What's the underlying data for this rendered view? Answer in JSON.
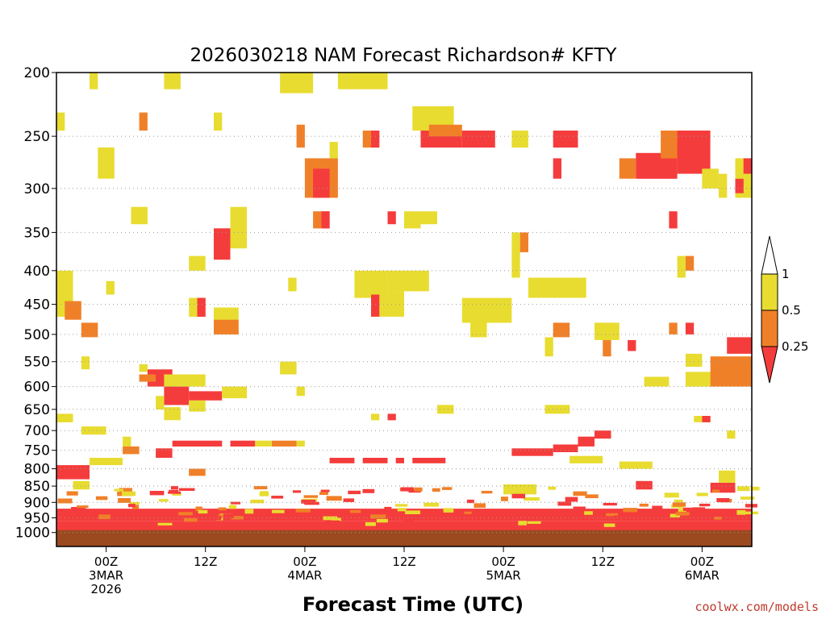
{
  "chart_data": {
    "type": "heatmap",
    "title": "2026030218 NAM Forecast Richardson# KFTY",
    "xlabel": "Forecast Time (UTC)",
    "ylabel": "",
    "credit": "coolwx.com/models",
    "y_axis": {
      "scale": "log-pressure",
      "range": [
        200,
        1050
      ],
      "ticks": [
        "200",
        "250",
        "300",
        "350",
        "400",
        "450",
        "500",
        "550",
        "600",
        "650",
        "700",
        "750",
        "800",
        "850",
        "900",
        "950",
        "1000"
      ]
    },
    "x_axis": {
      "range_hours": [
        0,
        84
      ],
      "ticks": [
        {
          "hour": 6,
          "label": "00Z",
          "date": "3MAR",
          "year": "2026"
        },
        {
          "hour": 18,
          "label": "12Z"
        },
        {
          "hour": 30,
          "label": "00Z",
          "date": "4MAR"
        },
        {
          "hour": 42,
          "label": "12Z"
        },
        {
          "hour": 54,
          "label": "00Z",
          "date": "5MAR"
        },
        {
          "hour": 66,
          "label": "12Z"
        },
        {
          "hour": 78,
          "label": "00Z",
          "date": "6MAR"
        }
      ]
    },
    "ground_level_hpa": 1000,
    "ground_color": "#9b4a20",
    "colorbar": {
      "labels": [
        "1",
        "0.5",
        "0.25"
      ],
      "bins": [
        {
          "range": ">1",
          "color": "#ffffff"
        },
        {
          "range": "0.5-1",
          "color": "#e8dc30"
        },
        {
          "range": "0.25-0.5",
          "color": "#f08028"
        },
        {
          "range": "<0.25",
          "color": "#f53c3c"
        }
      ]
    },
    "colors": {
      "y": "#e8dc30",
      "o": "#f08028",
      "r": "#f53c3c"
    },
    "regions": [
      {
        "h": [
          0,
          84
        ],
        "p": [
          960,
          1000
        ],
        "c": "r"
      },
      {
        "h": [
          0,
          84
        ],
        "p": [
          920,
          960
        ],
        "c": "r"
      },
      {
        "h": [
          0,
          4
        ],
        "p": [
          790,
          830
        ],
        "c": "r"
      },
      {
        "h": [
          2,
          4
        ],
        "p": [
          835,
          860
        ],
        "c": "y"
      },
      {
        "h": [
          4,
          8
        ],
        "p": [
          770,
          790
        ],
        "c": "y"
      },
      {
        "h": [
          8,
          10
        ],
        "p": [
          740,
          760
        ],
        "c": "o"
      },
      {
        "h": [
          8,
          9
        ],
        "p": [
          715,
          740
        ],
        "c": "y"
      },
      {
        "h": [
          14,
          20
        ],
        "p": [
          725,
          740
        ],
        "c": "r"
      },
      {
        "h": [
          21,
          24
        ],
        "p": [
          725,
          740
        ],
        "c": "r"
      },
      {
        "h": [
          26,
          29
        ],
        "p": [
          725,
          740
        ],
        "c": "o"
      },
      {
        "h": [
          24,
          26
        ],
        "p": [
          725,
          740
        ],
        "c": "y"
      },
      {
        "h": [
          29,
          30
        ],
        "p": [
          725,
          740
        ],
        "c": "y"
      },
      {
        "h": [
          16,
          18
        ],
        "p": [
          800,
          820
        ],
        "c": "o"
      },
      {
        "h": [
          12,
          14
        ],
        "p": [
          745,
          770
        ],
        "c": "r"
      },
      {
        "h": [
          33,
          36
        ],
        "p": [
          770,
          785
        ],
        "c": "r"
      },
      {
        "h": [
          37,
          40
        ],
        "p": [
          770,
          785
        ],
        "c": "r"
      },
      {
        "h": [
          43,
          47
        ],
        "p": [
          770,
          785
        ],
        "c": "r"
      },
      {
        "h": [
          41,
          42
        ],
        "p": [
          770,
          785
        ],
        "c": "r"
      },
      {
        "h": [
          55,
          60
        ],
        "p": [
          745,
          765
        ],
        "c": "r"
      },
      {
        "h": [
          60,
          63
        ],
        "p": [
          735,
          755
        ],
        "c": "r"
      },
      {
        "h": [
          63,
          65
        ],
        "p": [
          715,
          740
        ],
        "c": "r"
      },
      {
        "h": [
          65,
          67
        ],
        "p": [
          700,
          720
        ],
        "c": "r"
      },
      {
        "h": [
          62,
          66
        ],
        "p": [
          765,
          785
        ],
        "c": "y"
      },
      {
        "h": [
          68,
          72
        ],
        "p": [
          780,
          800
        ],
        "c": "y"
      },
      {
        "h": [
          70,
          72
        ],
        "p": [
          835,
          860
        ],
        "c": "r"
      },
      {
        "h": [
          79,
          82
        ],
        "p": [
          840,
          870
        ],
        "c": "r"
      },
      {
        "h": [
          80,
          82
        ],
        "p": [
          805,
          840
        ],
        "c": "y"
      },
      {
        "h": [
          54,
          58
        ],
        "p": [
          845,
          875
        ],
        "c": "y"
      },
      {
        "h": [
          0,
          2
        ],
        "p": [
          660,
          680
        ],
        "c": "y"
      },
      {
        "h": [
          3,
          6
        ],
        "p": [
          690,
          710
        ],
        "c": "y"
      },
      {
        "h": [
          11,
          14
        ],
        "p": [
          565,
          600
        ],
        "c": "r"
      },
      {
        "h": [
          13,
          16
        ],
        "p": [
          600,
          640
        ],
        "c": "r"
      },
      {
        "h": [
          16,
          20
        ],
        "p": [
          610,
          630
        ],
        "c": "r"
      },
      {
        "h": [
          20,
          23
        ],
        "p": [
          600,
          625
        ],
        "c": "y"
      },
      {
        "h": [
          13,
          18
        ],
        "p": [
          575,
          600
        ],
        "c": "y"
      },
      {
        "h": [
          12,
          13
        ],
        "p": [
          620,
          650
        ],
        "c": "y"
      },
      {
        "h": [
          16,
          18
        ],
        "p": [
          630,
          655
        ],
        "c": "y"
      },
      {
        "h": [
          13,
          15
        ],
        "p": [
          645,
          675
        ],
        "c": "y"
      },
      {
        "h": [
          10,
          12
        ],
        "p": [
          575,
          590
        ],
        "c": "o"
      },
      {
        "h": [
          3,
          4
        ],
        "p": [
          540,
          565
        ],
        "c": "y"
      },
      {
        "h": [
          10,
          11
        ],
        "p": [
          555,
          570
        ],
        "c": "y"
      },
      {
        "h": [
          27,
          29
        ],
        "p": [
          550,
          575
        ],
        "c": "y"
      },
      {
        "h": [
          29,
          30
        ],
        "p": [
          600,
          620
        ],
        "c": "y"
      },
      {
        "h": [
          38,
          39
        ],
        "p": [
          660,
          675
        ],
        "c": "y"
      },
      {
        "h": [
          40,
          41
        ],
        "p": [
          660,
          675
        ],
        "c": "r"
      },
      {
        "h": [
          46,
          48
        ],
        "p": [
          640,
          660
        ],
        "c": "y"
      },
      {
        "h": [
          59,
          62
        ],
        "p": [
          640,
          660
        ],
        "c": "y"
      },
      {
        "h": [
          71,
          74
        ],
        "p": [
          580,
          600
        ],
        "c": "y"
      },
      {
        "h": [
          76,
          82
        ],
        "p": [
          570,
          600
        ],
        "c": "y"
      },
      {
        "h": [
          79,
          84
        ],
        "p": [
          540,
          600
        ],
        "c": "o"
      },
      {
        "h": [
          81,
          84
        ],
        "p": [
          505,
          535
        ],
        "c": "r"
      },
      {
        "h": [
          76,
          78
        ],
        "p": [
          535,
          560
        ],
        "c": "y"
      },
      {
        "h": [
          77,
          79
        ],
        "p": [
          665,
          680
        ],
        "c": "y"
      },
      {
        "h": [
          78,
          79
        ],
        "p": [
          665,
          680
        ],
        "c": "r"
      },
      {
        "h": [
          81,
          82
        ],
        "p": [
          700,
          720
        ],
        "c": "y"
      },
      {
        "h": [
          0,
          2
        ],
        "p": [
          400,
          470
        ],
        "c": "y"
      },
      {
        "h": [
          1,
          3
        ],
        "p": [
          445,
          475
        ],
        "c": "o"
      },
      {
        "h": [
          3,
          5
        ],
        "p": [
          480,
          505
        ],
        "c": "o"
      },
      {
        "h": [
          6,
          7
        ],
        "p": [
          415,
          435
        ],
        "c": "y"
      },
      {
        "h": [
          16,
          18
        ],
        "p": [
          440,
          470
        ],
        "c": "y"
      },
      {
        "h": [
          16,
          18
        ],
        "p": [
          380,
          400
        ],
        "c": "y"
      },
      {
        "h": [
          17,
          18
        ],
        "p": [
          440,
          470
        ],
        "c": "r"
      },
      {
        "h": [
          19,
          22
        ],
        "p": [
          455,
          500
        ],
        "c": "y"
      },
      {
        "h": [
          19,
          22
        ],
        "p": [
          475,
          500
        ],
        "c": "o"
      },
      {
        "h": [
          19,
          21
        ],
        "p": [
          345,
          385
        ],
        "c": "r"
      },
      {
        "h": [
          21,
          23
        ],
        "p": [
          320,
          370
        ],
        "c": "y"
      },
      {
        "h": [
          28,
          29
        ],
        "p": [
          410,
          430
        ],
        "c": "y"
      },
      {
        "h": [
          36,
          40
        ],
        "p": [
          400,
          440
        ],
        "c": "y"
      },
      {
        "h": [
          40,
          45
        ],
        "p": [
          400,
          430
        ],
        "c": "y"
      },
      {
        "h": [
          38,
          42
        ],
        "p": [
          430,
          470
        ],
        "c": "y"
      },
      {
        "h": [
          38,
          39
        ],
        "p": [
          435,
          470
        ],
        "c": "r"
      },
      {
        "h": [
          49,
          55
        ],
        "p": [
          440,
          480
        ],
        "c": "y"
      },
      {
        "h": [
          50,
          52
        ],
        "p": [
          480,
          505
        ],
        "c": "y"
      },
      {
        "h": [
          55,
          56
        ],
        "p": [
          350,
          410
        ],
        "c": "y"
      },
      {
        "h": [
          56,
          57
        ],
        "p": [
          350,
          375
        ],
        "c": "o"
      },
      {
        "h": [
          57,
          64
        ],
        "p": [
          410,
          440
        ],
        "c": "y"
      },
      {
        "h": [
          60,
          62
        ],
        "p": [
          480,
          505
        ],
        "c": "o"
      },
      {
        "h": [
          59,
          60
        ],
        "p": [
          505,
          540
        ],
        "c": "y"
      },
      {
        "h": [
          65,
          68
        ],
        "p": [
          480,
          510
        ],
        "c": "y"
      },
      {
        "h": [
          66,
          67
        ],
        "p": [
          510,
          540
        ],
        "c": "o"
      },
      {
        "h": [
          69,
          70
        ],
        "p": [
          510,
          530
        ],
        "c": "r"
      },
      {
        "h": [
          74,
          75
        ],
        "p": [
          480,
          500
        ],
        "c": "o"
      },
      {
        "h": [
          76,
          77
        ],
        "p": [
          480,
          500
        ],
        "c": "r"
      },
      {
        "h": [
          75,
          76
        ],
        "p": [
          380,
          410
        ],
        "c": "y"
      },
      {
        "h": [
          76,
          77
        ],
        "p": [
          380,
          400
        ],
        "c": "o"
      },
      {
        "h": [
          74,
          75
        ],
        "p": [
          325,
          345
        ],
        "c": "r"
      },
      {
        "h": [
          0,
          1
        ],
        "p": [
          230,
          245
        ],
        "c": "y"
      },
      {
        "h": [
          4,
          5
        ],
        "p": [
          200,
          212
        ],
        "c": "y"
      },
      {
        "h": [
          5,
          7
        ],
        "p": [
          260,
          290
        ],
        "c": "y"
      },
      {
        "h": [
          9,
          11
        ],
        "p": [
          320,
          340
        ],
        "c": "y"
      },
      {
        "h": [
          10,
          11
        ],
        "p": [
          230,
          245
        ],
        "c": "o"
      },
      {
        "h": [
          13,
          15
        ],
        "p": [
          200,
          212
        ],
        "c": "y"
      },
      {
        "h": [
          19,
          20
        ],
        "p": [
          230,
          245
        ],
        "c": "y"
      },
      {
        "h": [
          27,
          31
        ],
        "p": [
          200,
          215
        ],
        "c": "y"
      },
      {
        "h": [
          34,
          40
        ],
        "p": [
          200,
          212
        ],
        "c": "y"
      },
      {
        "h": [
          29,
          30
        ],
        "p": [
          240,
          260
        ],
        "c": "o"
      },
      {
        "h": [
          30,
          34
        ],
        "p": [
          270,
          310
        ],
        "c": "o"
      },
      {
        "h": [
          31,
          33
        ],
        "p": [
          280,
          310
        ],
        "c": "r"
      },
      {
        "h": [
          33,
          34
        ],
        "p": [
          255,
          270
        ],
        "c": "y"
      },
      {
        "h": [
          31,
          33
        ],
        "p": [
          325,
          345
        ],
        "c": "o"
      },
      {
        "h": [
          32,
          33
        ],
        "p": [
          325,
          345
        ],
        "c": "r"
      },
      {
        "h": [
          37,
          39
        ],
        "p": [
          245,
          260
        ],
        "c": "o"
      },
      {
        "h": [
          38,
          39
        ],
        "p": [
          245,
          260
        ],
        "c": "r"
      },
      {
        "h": [
          40,
          41
        ],
        "p": [
          325,
          340
        ],
        "c": "r"
      },
      {
        "h": [
          42,
          44
        ],
        "p": [
          325,
          345
        ],
        "c": "y"
      },
      {
        "h": [
          44,
          46
        ],
        "p": [
          325,
          340
        ],
        "c": "y"
      },
      {
        "h": [
          43,
          48
        ],
        "p": [
          225,
          245
        ],
        "c": "y"
      },
      {
        "h": [
          44,
          49
        ],
        "p": [
          245,
          260
        ],
        "c": "r"
      },
      {
        "h": [
          49,
          53
        ],
        "p": [
          245,
          260
        ],
        "c": "r"
      },
      {
        "h": [
          45,
          49
        ],
        "p": [
          240,
          250
        ],
        "c": "o"
      },
      {
        "h": [
          55,
          57
        ],
        "p": [
          245,
          260
        ],
        "c": "y"
      },
      {
        "h": [
          60,
          63
        ],
        "p": [
          245,
          260
        ],
        "c": "r"
      },
      {
        "h": [
          60,
          61
        ],
        "p": [
          270,
          290
        ],
        "c": "r"
      },
      {
        "h": [
          68,
          70
        ],
        "p": [
          270,
          290
        ],
        "c": "o"
      },
      {
        "h": [
          70,
          75
        ],
        "p": [
          265,
          290
        ],
        "c": "r"
      },
      {
        "h": [
          73,
          76
        ],
        "p": [
          245,
          270
        ],
        "c": "o"
      },
      {
        "h": [
          75,
          79
        ],
        "p": [
          245,
          285
        ],
        "c": "r"
      },
      {
        "h": [
          78,
          80
        ],
        "p": [
          280,
          300
        ],
        "c": "y"
      },
      {
        "h": [
          80,
          81
        ],
        "p": [
          285,
          310
        ],
        "c": "y"
      },
      {
        "h": [
          82,
          84
        ],
        "p": [
          270,
          310
        ],
        "c": "y"
      },
      {
        "h": [
          82,
          83
        ],
        "p": [
          290,
          305
        ],
        "c": "r"
      },
      {
        "h": [
          83,
          84
        ],
        "p": [
          270,
          285
        ],
        "c": "r"
      }
    ]
  }
}
